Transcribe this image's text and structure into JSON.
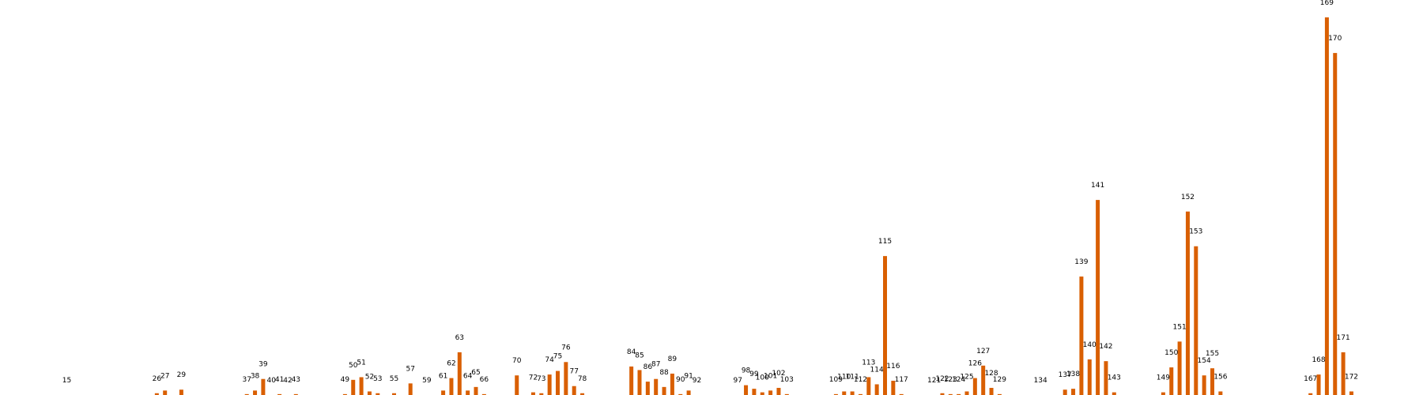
{
  "chart_data": {
    "type": "bar",
    "title": "",
    "xlabel": "",
    "ylabel": "",
    "grid": false,
    "legend": "none",
    "ylim": [
      0,
      210
    ],
    "bar_color": "#d95f02",
    "labels_shown_above_bars": true,
    "points": [
      {
        "x": 15,
        "y": 0
      },
      {
        "x": 26,
        "y": 1
      },
      {
        "x": 27,
        "y": 2.5
      },
      {
        "x": 29,
        "y": 3
      },
      {
        "x": 37,
        "y": 0.5
      },
      {
        "x": 38,
        "y": 2.5
      },
      {
        "x": 39,
        "y": 9
      },
      {
        "x": 40,
        "y": 0
      },
      {
        "x": 41,
        "y": 0.5
      },
      {
        "x": 42,
        "y": 0
      },
      {
        "x": 43,
        "y": 0.5
      },
      {
        "x": 49,
        "y": 0.5
      },
      {
        "x": 50,
        "y": 8.5
      },
      {
        "x": 51,
        "y": 10
      },
      {
        "x": 52,
        "y": 2
      },
      {
        "x": 53,
        "y": 1
      },
      {
        "x": 55,
        "y": 1
      },
      {
        "x": 57,
        "y": 6.5
      },
      {
        "x": 59,
        "y": 0
      },
      {
        "x": 61,
        "y": 2.5
      },
      {
        "x": 62,
        "y": 9.5
      },
      {
        "x": 63,
        "y": 24
      },
      {
        "x": 64,
        "y": 2.5
      },
      {
        "x": 65,
        "y": 4.5
      },
      {
        "x": 66,
        "y": 0.5
      },
      {
        "x": 70,
        "y": 11
      },
      {
        "x": 72,
        "y": 1.5
      },
      {
        "x": 73,
        "y": 1
      },
      {
        "x": 74,
        "y": 11.5
      },
      {
        "x": 75,
        "y": 13.5
      },
      {
        "x": 76,
        "y": 18.5
      },
      {
        "x": 77,
        "y": 5
      },
      {
        "x": 78,
        "y": 1
      },
      {
        "x": 84,
        "y": 16
      },
      {
        "x": 85,
        "y": 14
      },
      {
        "x": 86,
        "y": 7.5
      },
      {
        "x": 87,
        "y": 9
      },
      {
        "x": 88,
        "y": 4.5
      },
      {
        "x": 89,
        "y": 12
      },
      {
        "x": 90,
        "y": 0.5
      },
      {
        "x": 91,
        "y": 2.5
      },
      {
        "x": 92,
        "y": 0
      },
      {
        "x": 97,
        "y": 0
      },
      {
        "x": 98,
        "y": 5.5
      },
      {
        "x": 99,
        "y": 3.5
      },
      {
        "x": 100,
        "y": 1.5
      },
      {
        "x": 101,
        "y": 2.5
      },
      {
        "x": 102,
        "y": 4
      },
      {
        "x": 103,
        "y": 0.5
      },
      {
        "x": 109,
        "y": 0.5
      },
      {
        "x": 110,
        "y": 2
      },
      {
        "x": 111,
        "y": 2
      },
      {
        "x": 112,
        "y": 0.5
      },
      {
        "x": 113,
        "y": 10
      },
      {
        "x": 114,
        "y": 6
      },
      {
        "x": 115,
        "y": 78
      },
      {
        "x": 116,
        "y": 8
      },
      {
        "x": 117,
        "y": 0.5
      },
      {
        "x": 121,
        "y": 0
      },
      {
        "x": 122,
        "y": 1
      },
      {
        "x": 123,
        "y": 0.5
      },
      {
        "x": 124,
        "y": 0.5
      },
      {
        "x": 125,
        "y": 2
      },
      {
        "x": 126,
        "y": 9.5
      },
      {
        "x": 127,
        "y": 16.5
      },
      {
        "x": 128,
        "y": 4
      },
      {
        "x": 129,
        "y": 0.5
      },
      {
        "x": 134,
        "y": 0
      },
      {
        "x": 137,
        "y": 3
      },
      {
        "x": 138,
        "y": 3.5
      },
      {
        "x": 139,
        "y": 66.5
      },
      {
        "x": 140,
        "y": 20
      },
      {
        "x": 141,
        "y": 109.5
      },
      {
        "x": 142,
        "y": 19
      },
      {
        "x": 143,
        "y": 1.5
      },
      {
        "x": 149,
        "y": 1.5
      },
      {
        "x": 150,
        "y": 15.5
      },
      {
        "x": 151,
        "y": 30
      },
      {
        "x": 152,
        "y": 103
      },
      {
        "x": 153,
        "y": 83.5
      },
      {
        "x": 154,
        "y": 11
      },
      {
        "x": 155,
        "y": 15
      },
      {
        "x": 156,
        "y": 2
      },
      {
        "x": 167,
        "y": 1
      },
      {
        "x": 168,
        "y": 11.5
      },
      {
        "x": 169,
        "y": 212
      },
      {
        "x": 170,
        "y": 192
      },
      {
        "x": 171,
        "y": 24
      },
      {
        "x": 172,
        "y": 2
      }
    ]
  }
}
